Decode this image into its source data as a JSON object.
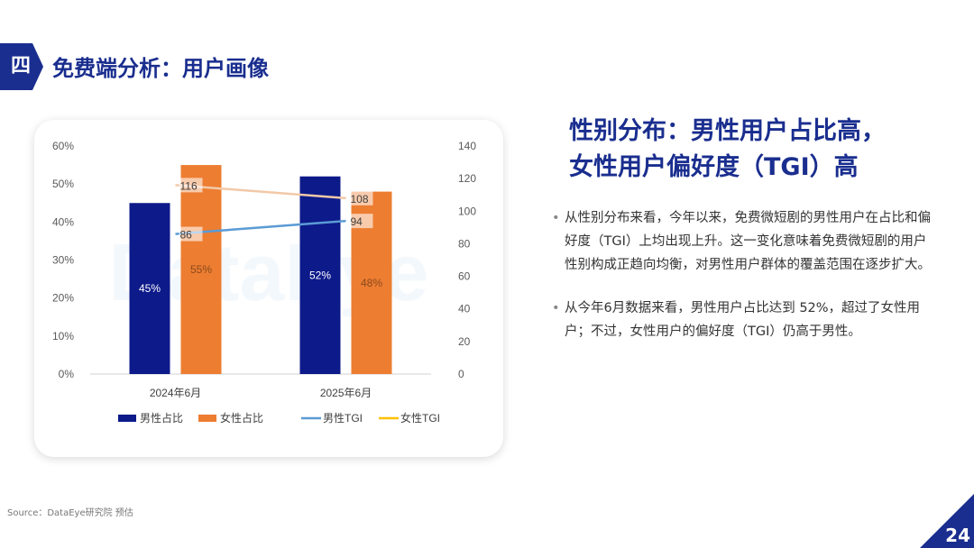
{
  "header": {
    "badge": "四",
    "title": "免费端分析：用户画像"
  },
  "watermark": "DataEye",
  "right_panel": {
    "title_lines": [
      "性别分布：男性用户占比高，",
      "女性用户偏好度（TGI）高"
    ],
    "bullets": [
      "从性别分布来看，今年以来，免费微短剧的男性用户在占比和偏好度（TGI）上均出现上升。这一变化意味着免费微短剧的用户性别构成正趋向均衡，对男性用户群体的覆盖范围在逐步扩大。",
      "从今年6月数据来看，男性用户占比达到 52%，超过了女性用户；不过，女性用户的偏好度（TGI）仍高于男性。"
    ]
  },
  "footer": {
    "source": "Source：DataEye研究院 预估",
    "page_number": "24"
  },
  "colors": {
    "male": "#0d1a8a",
    "female": "#ed7d31",
    "male_tgi": "#5b9bd5",
    "female_tgi": "#f2c9a8",
    "female_tgi_legend": "#ffc000",
    "accent": "#1a2e8f"
  },
  "chart_data": {
    "type": "bar",
    "categories": [
      "2024年6月",
      "2025年6月"
    ],
    "series": [
      {
        "name": "男性占比",
        "kind": "bar",
        "axis": "left",
        "values": [
          45,
          52
        ],
        "labels": [
          "45%",
          "52%"
        ]
      },
      {
        "name": "女性占比",
        "kind": "bar",
        "axis": "left",
        "values": [
          55,
          48
        ],
        "labels": [
          "55%",
          "48%"
        ]
      },
      {
        "name": "男性TGI",
        "kind": "line",
        "axis": "right",
        "values": [
          86,
          94
        ],
        "labels": [
          "86",
          "94"
        ]
      },
      {
        "name": "女性TGI",
        "kind": "line",
        "axis": "right",
        "values": [
          116,
          108
        ],
        "labels": [
          "116",
          "108"
        ]
      }
    ],
    "left_axis": {
      "min": 0,
      "max": 60,
      "ticks": [
        "0%",
        "10%",
        "20%",
        "30%",
        "40%",
        "50%",
        "60%"
      ]
    },
    "right_axis": {
      "min": 0,
      "max": 140,
      "ticks": [
        "0",
        "20",
        "40",
        "60",
        "80",
        "100",
        "120",
        "140"
      ]
    },
    "legend_position": "bottom",
    "grid": false
  }
}
